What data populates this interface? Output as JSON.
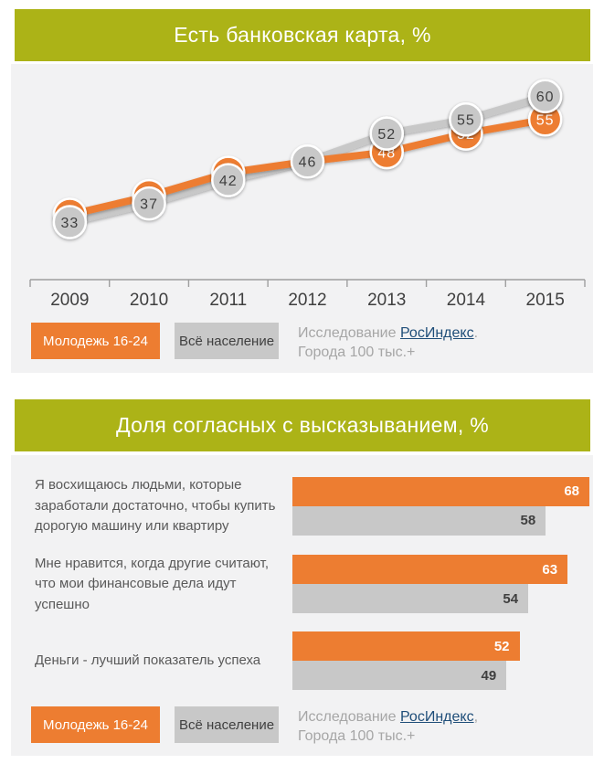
{
  "colors": {
    "header_green": "#ACB317",
    "youth_orange": "#ED7D31",
    "all_gray": "#C8C8C8",
    "panel_bg": "#F2F2F3",
    "dark_text": "#3F3F3F",
    "muted_text": "#A6A6A6",
    "link_blue": "#1F4E79"
  },
  "legend": {
    "youth": "Молодежь 16-24",
    "all": "Всё население"
  },
  "chart_data": [
    {
      "type": "line",
      "title": "Есть банковская карта, %",
      "categories": [
        "2009",
        "2010",
        "2011",
        "2012",
        "2013",
        "2014",
        "2015"
      ],
      "series": [
        {
          "name": "Молодежь 16-24",
          "color": "#ED7D31",
          "values": [
            33,
            37,
            42,
            46,
            48,
            52,
            55
          ],
          "labels_shown": [
            false,
            false,
            false,
            false,
            true,
            true,
            true
          ]
        },
        {
          "name": "Всё население",
          "color": "#C8C8C8",
          "values": [
            33,
            37,
            42,
            46,
            52,
            55,
            60
          ],
          "labels_shown": [
            true,
            true,
            true,
            true,
            true,
            true,
            true
          ]
        }
      ],
      "ylim": [
        28,
        67
      ],
      "grid": false,
      "legend_position": "bottom",
      "source": {
        "prefix": "Исследование ",
        "link": "РосИндекс",
        "suffix": ".",
        "line2": "Города 100 тыс.+"
      }
    },
    {
      "type": "bar",
      "title": "Доля согласных с высказыванием, %",
      "categories": [
        "Я восхищаюсь людьми, которые заработали достаточно, чтобы купить дорогую машину или квартиру",
        "Мне нравится, когда другие считают, что мои финансовые дела идут успешно",
        "Деньги - лучший показатель успеха"
      ],
      "series": [
        {
          "name": "Молодежь 16-24",
          "color": "#ED7D31",
          "values": [
            68,
            63,
            52
          ]
        },
        {
          "name": "Всё население",
          "color": "#C8C8C8",
          "values": [
            58,
            54,
            49
          ]
        }
      ],
      "xlim": [
        0,
        68
      ],
      "grid": false,
      "legend_position": "bottom",
      "source": {
        "prefix": "Исследование ",
        "link": "РосИндекс",
        "suffix": ",",
        "line2": "Города 100 тыс.+"
      }
    }
  ]
}
